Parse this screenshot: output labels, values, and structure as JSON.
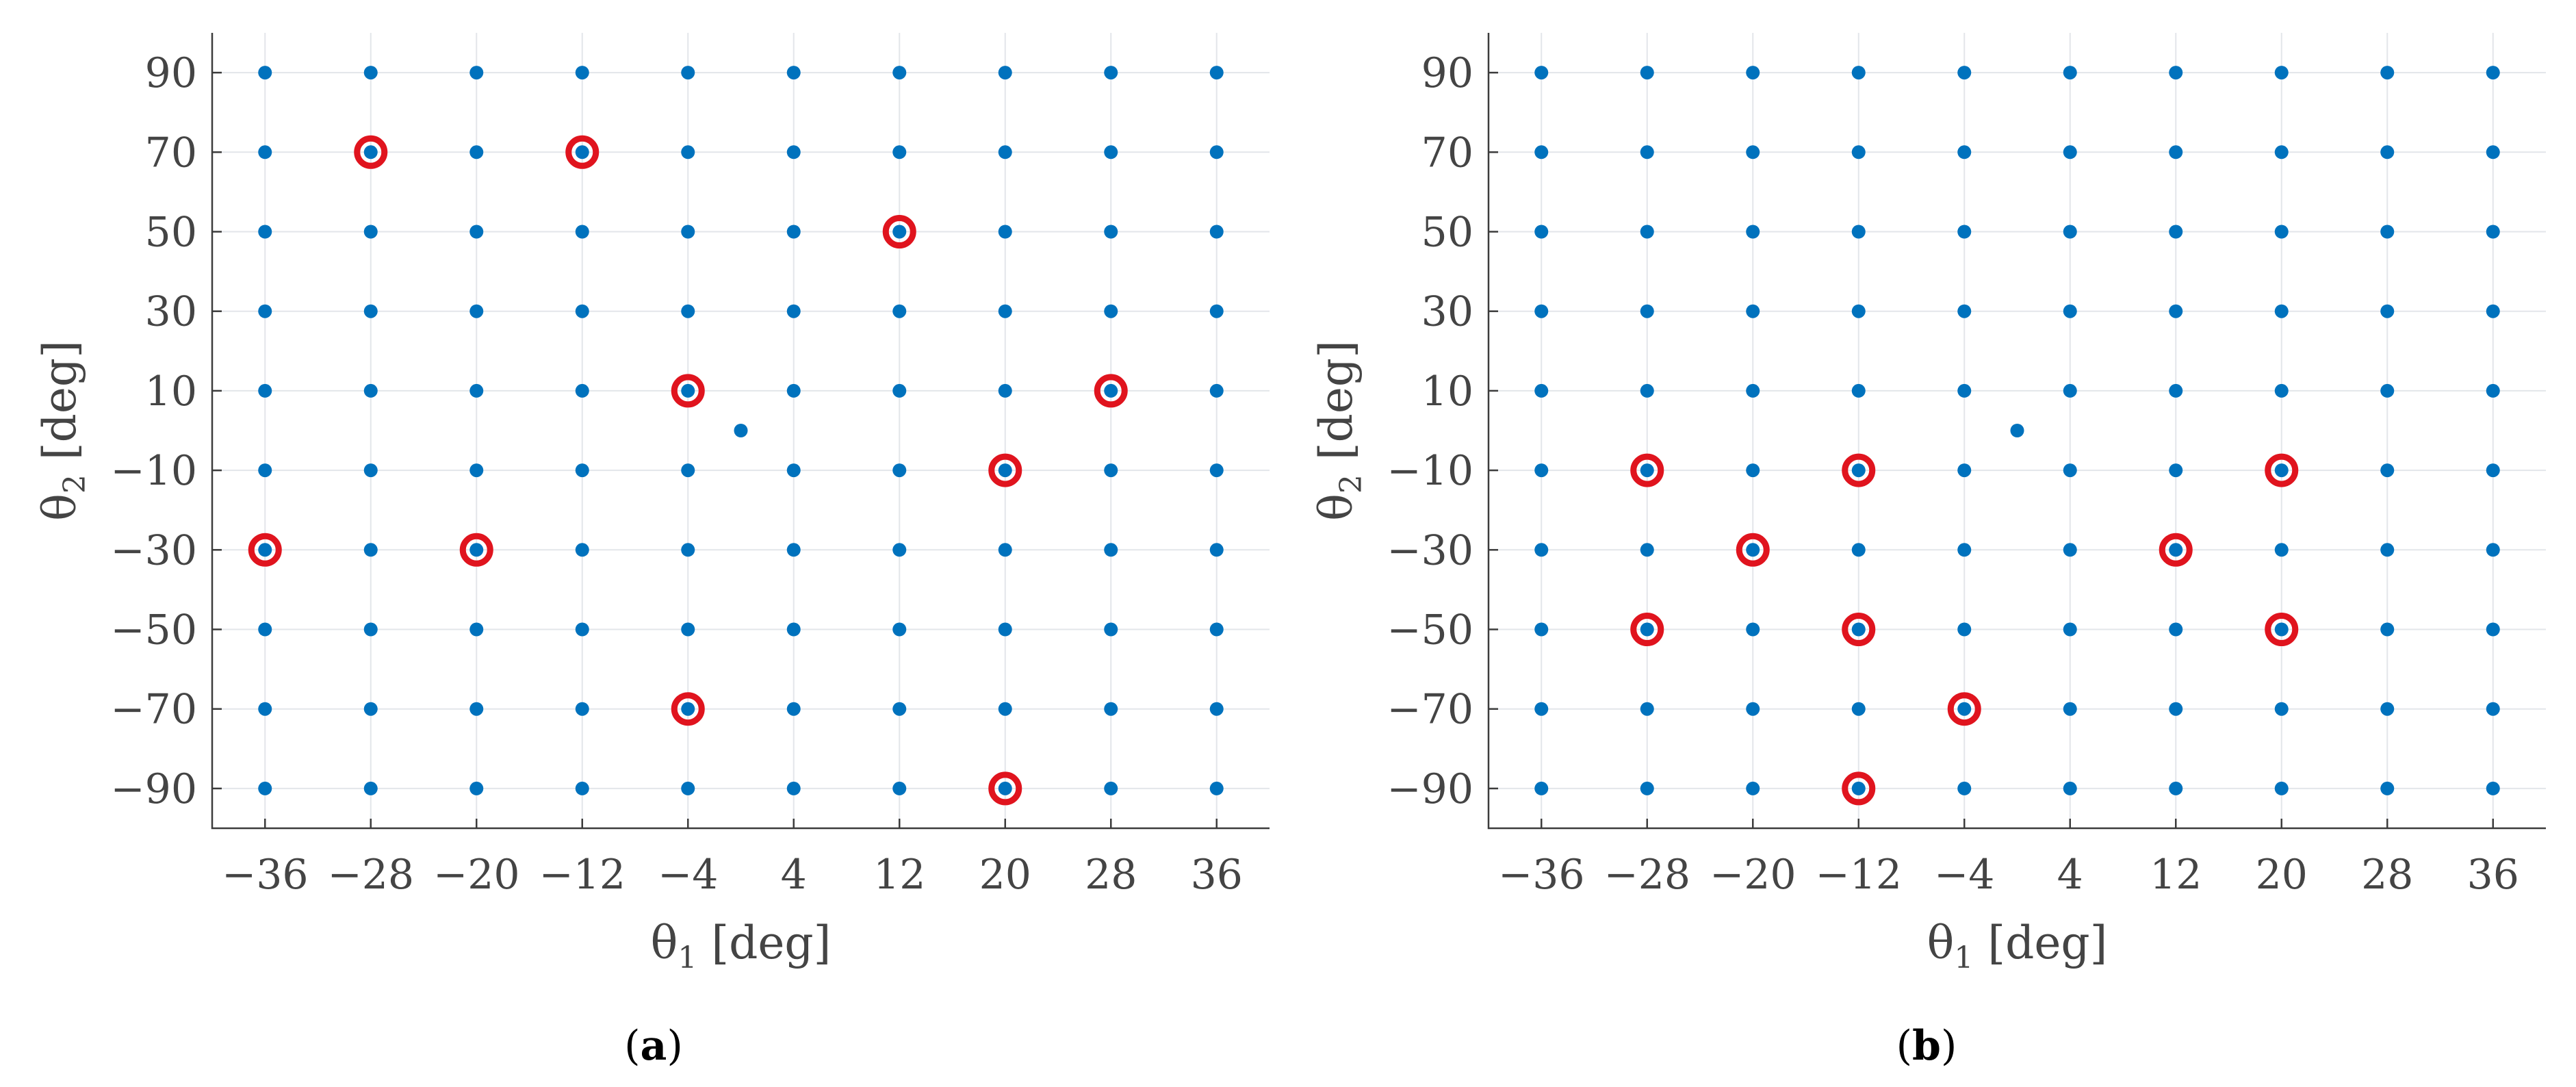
{
  "chart_data": [
    {
      "type": "scatter",
      "panel_label": "a",
      "xlabel": {
        "symbol": "θ",
        "sub": "1",
        "unit": " [deg]"
      },
      "ylabel": {
        "symbol": "θ",
        "sub": "2",
        "unit": " [deg]"
      },
      "xticks": [
        -36,
        -28,
        -20,
        -12,
        -4,
        4,
        12,
        20,
        28,
        36
      ],
      "yticks": [
        -90,
        -70,
        -50,
        -30,
        -10,
        10,
        30,
        50,
        70,
        90
      ],
      "xlim": [
        -40,
        40
      ],
      "ylim": [
        -100,
        100
      ],
      "grid": true,
      "colors": {
        "points": "#0072BD",
        "highlight": "#E0141E"
      },
      "series": [
        {
          "kind": "grid",
          "x": [
            -36,
            -28,
            -20,
            -12,
            -4,
            4,
            12,
            20,
            28,
            36
          ],
          "y": [
            -90,
            -70,
            -50,
            -30,
            -10,
            10,
            30,
            50,
            70,
            90
          ]
        },
        {
          "kind": "extra",
          "points": [
            [
              0,
              0
            ]
          ]
        },
        {
          "kind": "highlighted",
          "points": [
            [
              -28,
              70
            ],
            [
              -12,
              70
            ],
            [
              12,
              50
            ],
            [
              -4,
              10
            ],
            [
              28,
              10
            ],
            [
              20,
              -10
            ],
            [
              -36,
              -30
            ],
            [
              -20,
              -30
            ],
            [
              -4,
              -70
            ],
            [
              20,
              -90
            ]
          ]
        }
      ]
    },
    {
      "type": "scatter",
      "panel_label": "b",
      "xlabel": {
        "symbol": "θ",
        "sub": "1",
        "unit": " [deg]"
      },
      "ylabel": {
        "symbol": "θ",
        "sub": "2",
        "unit": " [deg]"
      },
      "xticks": [
        -36,
        -28,
        -20,
        -12,
        -4,
        4,
        12,
        20,
        28,
        36
      ],
      "yticks": [
        -90,
        -70,
        -50,
        -30,
        -10,
        10,
        30,
        50,
        70,
        90
      ],
      "xlim": [
        -40,
        40
      ],
      "ylim": [
        -100,
        100
      ],
      "grid": true,
      "colors": {
        "points": "#0072BD",
        "highlight": "#E0141E"
      },
      "series": [
        {
          "kind": "grid",
          "x": [
            -36,
            -28,
            -20,
            -12,
            -4,
            4,
            12,
            20,
            28,
            36
          ],
          "y": [
            -90,
            -70,
            -50,
            -30,
            -10,
            10,
            30,
            50,
            70,
            90
          ]
        },
        {
          "kind": "extra",
          "points": [
            [
              0,
              0
            ]
          ]
        },
        {
          "kind": "highlighted",
          "points": [
            [
              -28,
              -10
            ],
            [
              -12,
              -10
            ],
            [
              20,
              -10
            ],
            [
              -20,
              -30
            ],
            [
              12,
              -30
            ],
            [
              -28,
              -50
            ],
            [
              -12,
              -50
            ],
            [
              20,
              -50
            ],
            [
              -4,
              -70
            ],
            [
              -12,
              -90
            ]
          ]
        }
      ]
    }
  ]
}
